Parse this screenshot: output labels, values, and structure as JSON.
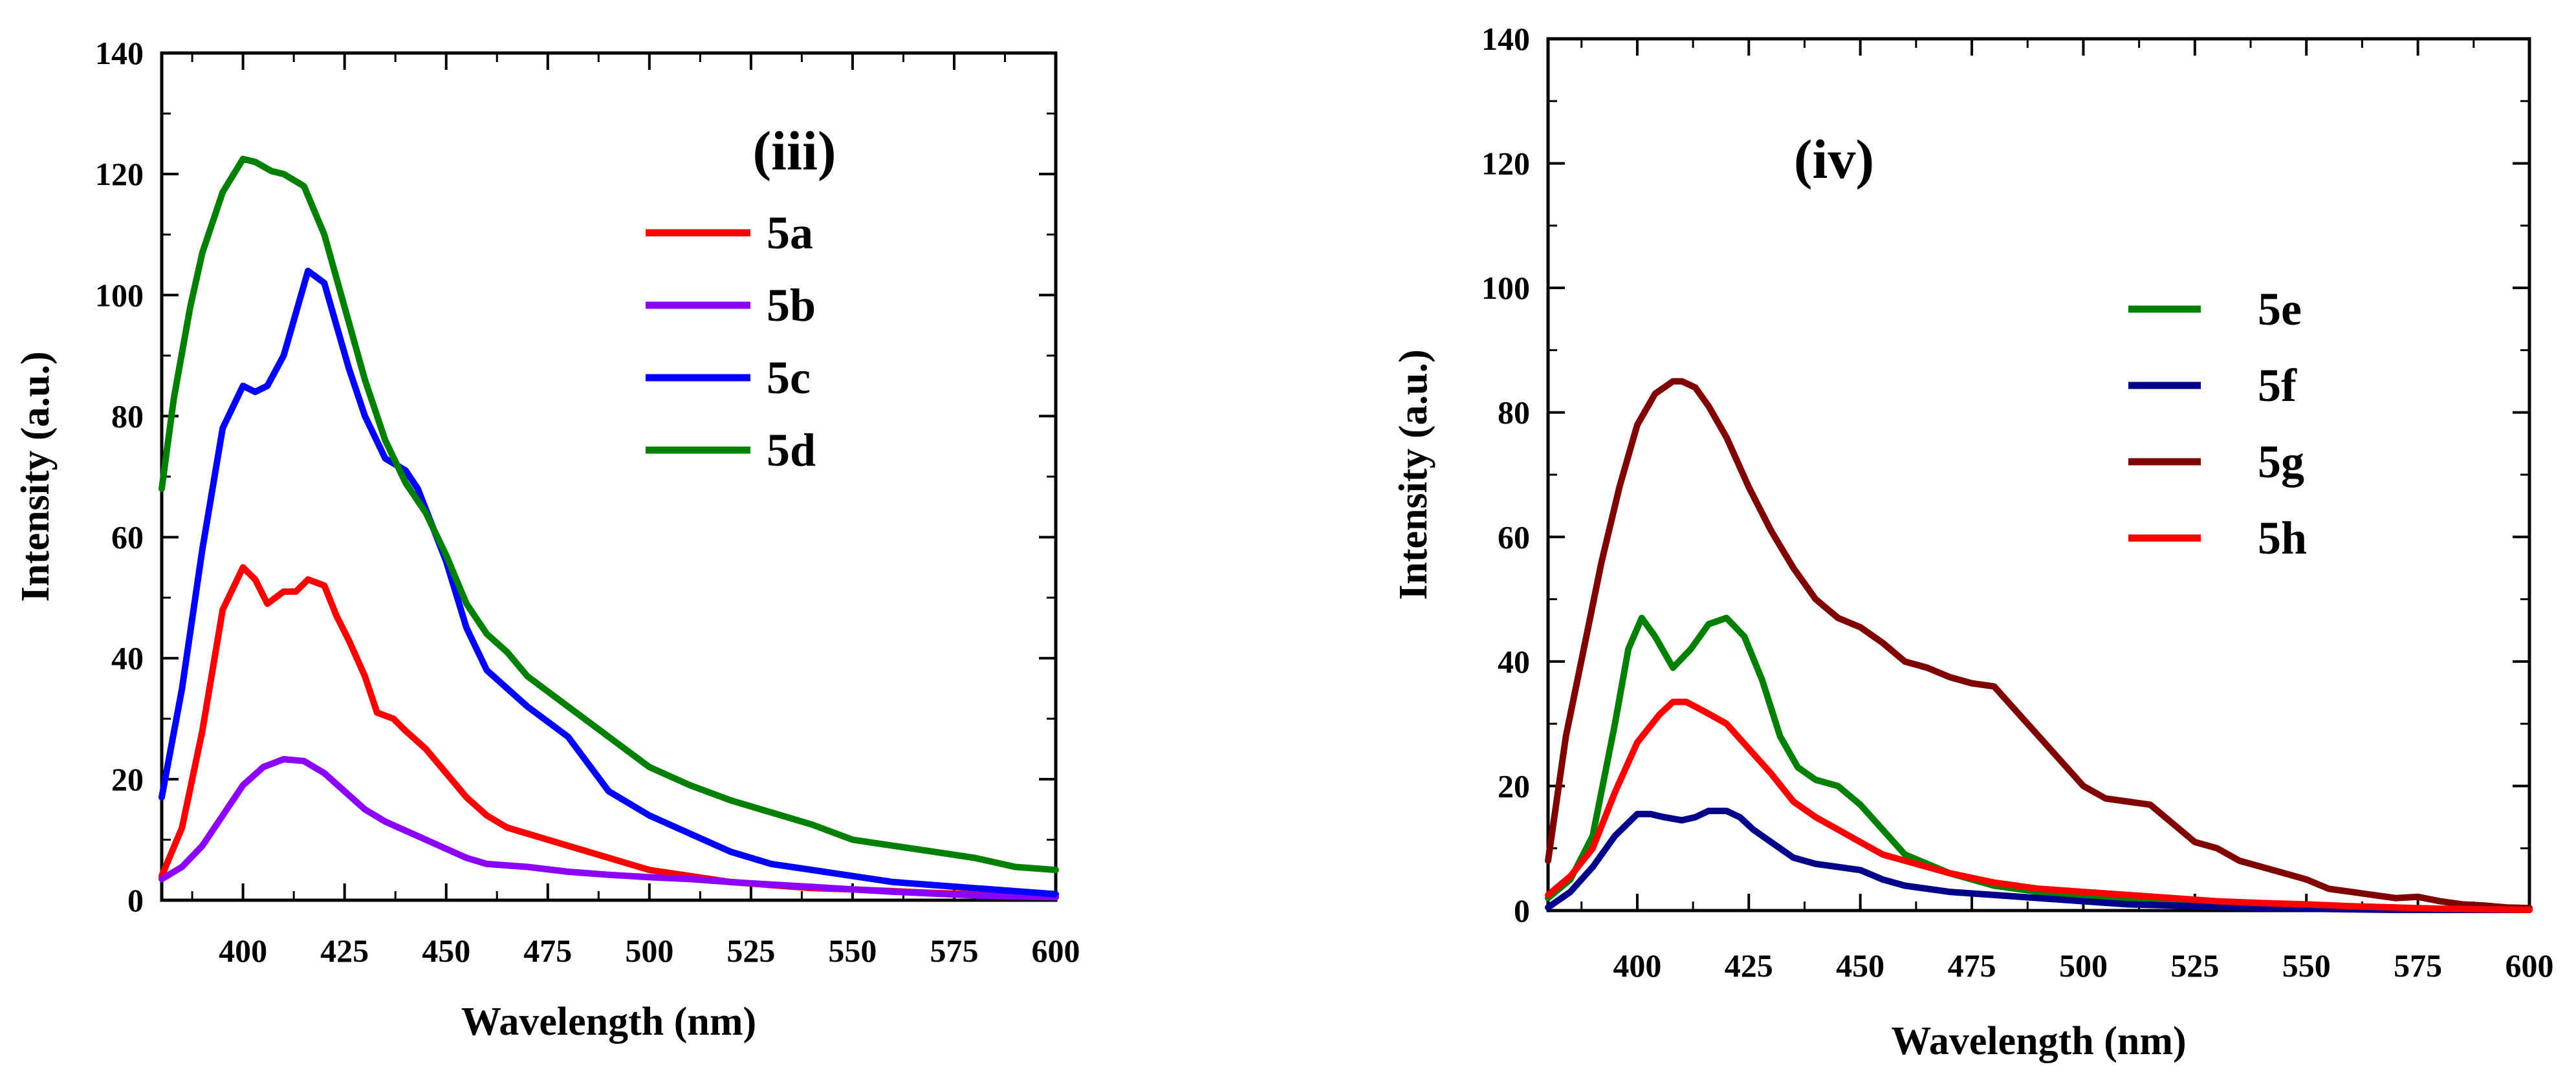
{
  "chart_data": [
    {
      "type": "line",
      "panel_label": "(iii)",
      "xlabel": "Wavelength (nm)",
      "ylabel": "Intensity (a.u.)",
      "xlim": [
        380,
        600
      ],
      "ylim": [
        0,
        140
      ],
      "x_ticks": [
        400,
        425,
        450,
        475,
        500,
        525,
        550,
        575,
        600
      ],
      "y_ticks": [
        0,
        20,
        40,
        60,
        80,
        100,
        120,
        140
      ],
      "legend_position": "top-right",
      "series": [
        {
          "name": "5a",
          "color": "#ff0000",
          "x": [
            380,
            385,
            390,
            395,
            400,
            403,
            406,
            410,
            413,
            416,
            420,
            423,
            426,
            430,
            433,
            437,
            440,
            445,
            450,
            455,
            460,
            465,
            470,
            480,
            490,
            500,
            510,
            520,
            530,
            540,
            550,
            560,
            570,
            580,
            590,
            600
          ],
          "y": [
            4,
            12,
            28,
            48,
            55,
            53,
            49,
            51,
            51,
            53,
            52,
            47,
            43,
            37,
            31,
            30,
            28,
            25,
            21,
            17,
            14,
            12,
            11,
            9,
            7,
            5,
            4,
            3,
            2.5,
            2,
            1.8,
            1.5,
            1.2,
            1,
            0.8,
            0.5
          ]
        },
        {
          "name": "5b",
          "color": "#8b00ff",
          "x": [
            380,
            385,
            390,
            395,
            400,
            405,
            410,
            415,
            420,
            425,
            430,
            435,
            440,
            445,
            450,
            455,
            460,
            470,
            480,
            490,
            500,
            510,
            520,
            530,
            540,
            550,
            560,
            570,
            580,
            590,
            600
          ],
          "y": [
            3.5,
            5.5,
            9,
            14,
            19,
            22,
            23.3,
            23,
            21,
            18,
            15,
            13,
            11.5,
            10,
            8.5,
            7,
            6,
            5.5,
            4.7,
            4.2,
            3.8,
            3.5,
            3,
            2.6,
            2.2,
            1.8,
            1.4,
            1.1,
            0.8,
            0.6,
            0.5
          ]
        },
        {
          "name": "5c",
          "color": "#0000ff",
          "x": [
            380,
            385,
            390,
            395,
            400,
            403,
            406,
            410,
            413,
            416,
            420,
            423,
            426,
            430,
            435,
            440,
            443,
            450,
            455,
            460,
            470,
            480,
            490,
            500,
            510,
            520,
            530,
            540,
            550,
            560,
            570,
            580,
            590,
            600
          ],
          "y": [
            17,
            35,
            58,
            78,
            85,
            84,
            85,
            90,
            97,
            104,
            102,
            95,
            88,
            80,
            73,
            71,
            68,
            56,
            45,
            38,
            32,
            27,
            18,
            14,
            11,
            8,
            6,
            5,
            4,
            3,
            2.5,
            2,
            1.5,
            1
          ]
        },
        {
          "name": "5d",
          "color": "#008000",
          "x": [
            380,
            383,
            387,
            390,
            395,
            400,
            403,
            407,
            410,
            415,
            420,
            425,
            430,
            435,
            440,
            445,
            450,
            455,
            460,
            465,
            470,
            480,
            490,
            500,
            510,
            520,
            530,
            540,
            550,
            560,
            570,
            580,
            590,
            600
          ],
          "y": [
            68,
            83,
            98,
            107,
            117,
            122.5,
            122,
            120.5,
            120,
            118,
            110,
            98,
            86,
            76,
            69,
            64,
            57,
            49,
            44,
            41,
            37,
            32,
            27,
            22,
            19,
            16.5,
            14.5,
            12.5,
            10,
            9,
            8,
            7,
            5.5,
            5
          ]
        }
      ]
    },
    {
      "type": "line",
      "panel_label": "(iv)",
      "xlabel": "Wavelength (nm)",
      "ylabel": "Intensity (a.u.)",
      "xlim": [
        380,
        600
      ],
      "ylim": [
        0,
        140
      ],
      "x_ticks": [
        400,
        425,
        450,
        475,
        500,
        525,
        550,
        575,
        600
      ],
      "y_ticks": [
        0,
        20,
        40,
        60,
        80,
        100,
        120,
        140
      ],
      "legend_position": "center-right",
      "series": [
        {
          "name": "5e",
          "color": "#008000",
          "x": [
            380,
            385,
            390,
            395,
            398,
            401,
            404,
            408,
            412,
            416,
            420,
            424,
            428,
            432,
            436,
            440,
            445,
            450,
            455,
            460,
            470,
            480,
            490,
            500,
            510,
            520,
            530,
            540,
            550,
            560,
            570,
            580,
            590,
            600
          ],
          "y": [
            2,
            5,
            12,
            30,
            42,
            47,
            44,
            39,
            42,
            46,
            47,
            44,
            37,
            28,
            23,
            21,
            20,
            17,
            13,
            9,
            6,
            4,
            3,
            2,
            1.5,
            1,
            0.7,
            0.5,
            0.4,
            0.3,
            0.2,
            0.1,
            0.1,
            0.1
          ]
        },
        {
          "name": "5f",
          "color": "#00008b",
          "x": [
            380,
            385,
            390,
            395,
            400,
            403,
            406,
            410,
            413,
            416,
            420,
            423,
            426,
            430,
            435,
            440,
            445,
            450,
            455,
            460,
            470,
            480,
            490,
            500,
            510,
            520,
            530,
            540,
            550,
            560,
            570,
            580,
            590,
            600
          ],
          "y": [
            0.5,
            3,
            7,
            12,
            15.5,
            15.5,
            15,
            14.5,
            15,
            16,
            16,
            15,
            13,
            11,
            8.5,
            7.5,
            7,
            6.5,
            5,
            4,
            3,
            2.5,
            2,
            1.5,
            1,
            0.8,
            0.6,
            0.4,
            0.3,
            0.2,
            0.1,
            0.1,
            0.1,
            0.1
          ]
        },
        {
          "name": "5g",
          "color": "#800000",
          "x": [
            380,
            384,
            388,
            392,
            396,
            400,
            404,
            408,
            410,
            413,
            416,
            420,
            425,
            430,
            435,
            440,
            445,
            450,
            455,
            460,
            465,
            470,
            475,
            480,
            485,
            490,
            495,
            500,
            505,
            510,
            515,
            520,
            525,
            530,
            535,
            540,
            545,
            550,
            555,
            560,
            565,
            570,
            575,
            580,
            585,
            590,
            595,
            600
          ],
          "y": [
            8,
            28,
            42,
            56,
            68,
            78,
            83,
            85,
            85,
            84,
            81,
            76,
            68,
            61,
            55,
            50,
            47,
            45.5,
            43,
            40,
            39,
            37.5,
            36.5,
            36,
            32,
            28,
            24,
            20,
            18,
            17.5,
            17,
            14,
            11,
            10,
            8,
            7,
            6,
            5,
            3.5,
            3,
            2.5,
            2,
            2.2,
            1.5,
            1,
            0.8,
            0.5,
            0.4
          ]
        },
        {
          "name": "5h",
          "color": "#ff0000",
          "x": [
            380,
            385,
            390,
            395,
            400,
            405,
            408,
            411,
            415,
            420,
            425,
            430,
            435,
            440,
            445,
            450,
            455,
            460,
            465,
            470,
            480,
            490,
            500,
            510,
            520,
            530,
            540,
            550,
            560,
            570,
            580,
            590,
            600
          ],
          "y": [
            2.5,
            5.5,
            10,
            19,
            27,
            31.5,
            33.5,
            33.5,
            32,
            30,
            26,
            22,
            17.5,
            15,
            13,
            11,
            9,
            8,
            7,
            6,
            4.5,
            3.5,
            3,
            2.5,
            2,
            1.5,
            1.2,
            1,
            0.7,
            0.5,
            0.3,
            0.2,
            0.1
          ]
        }
      ]
    }
  ]
}
